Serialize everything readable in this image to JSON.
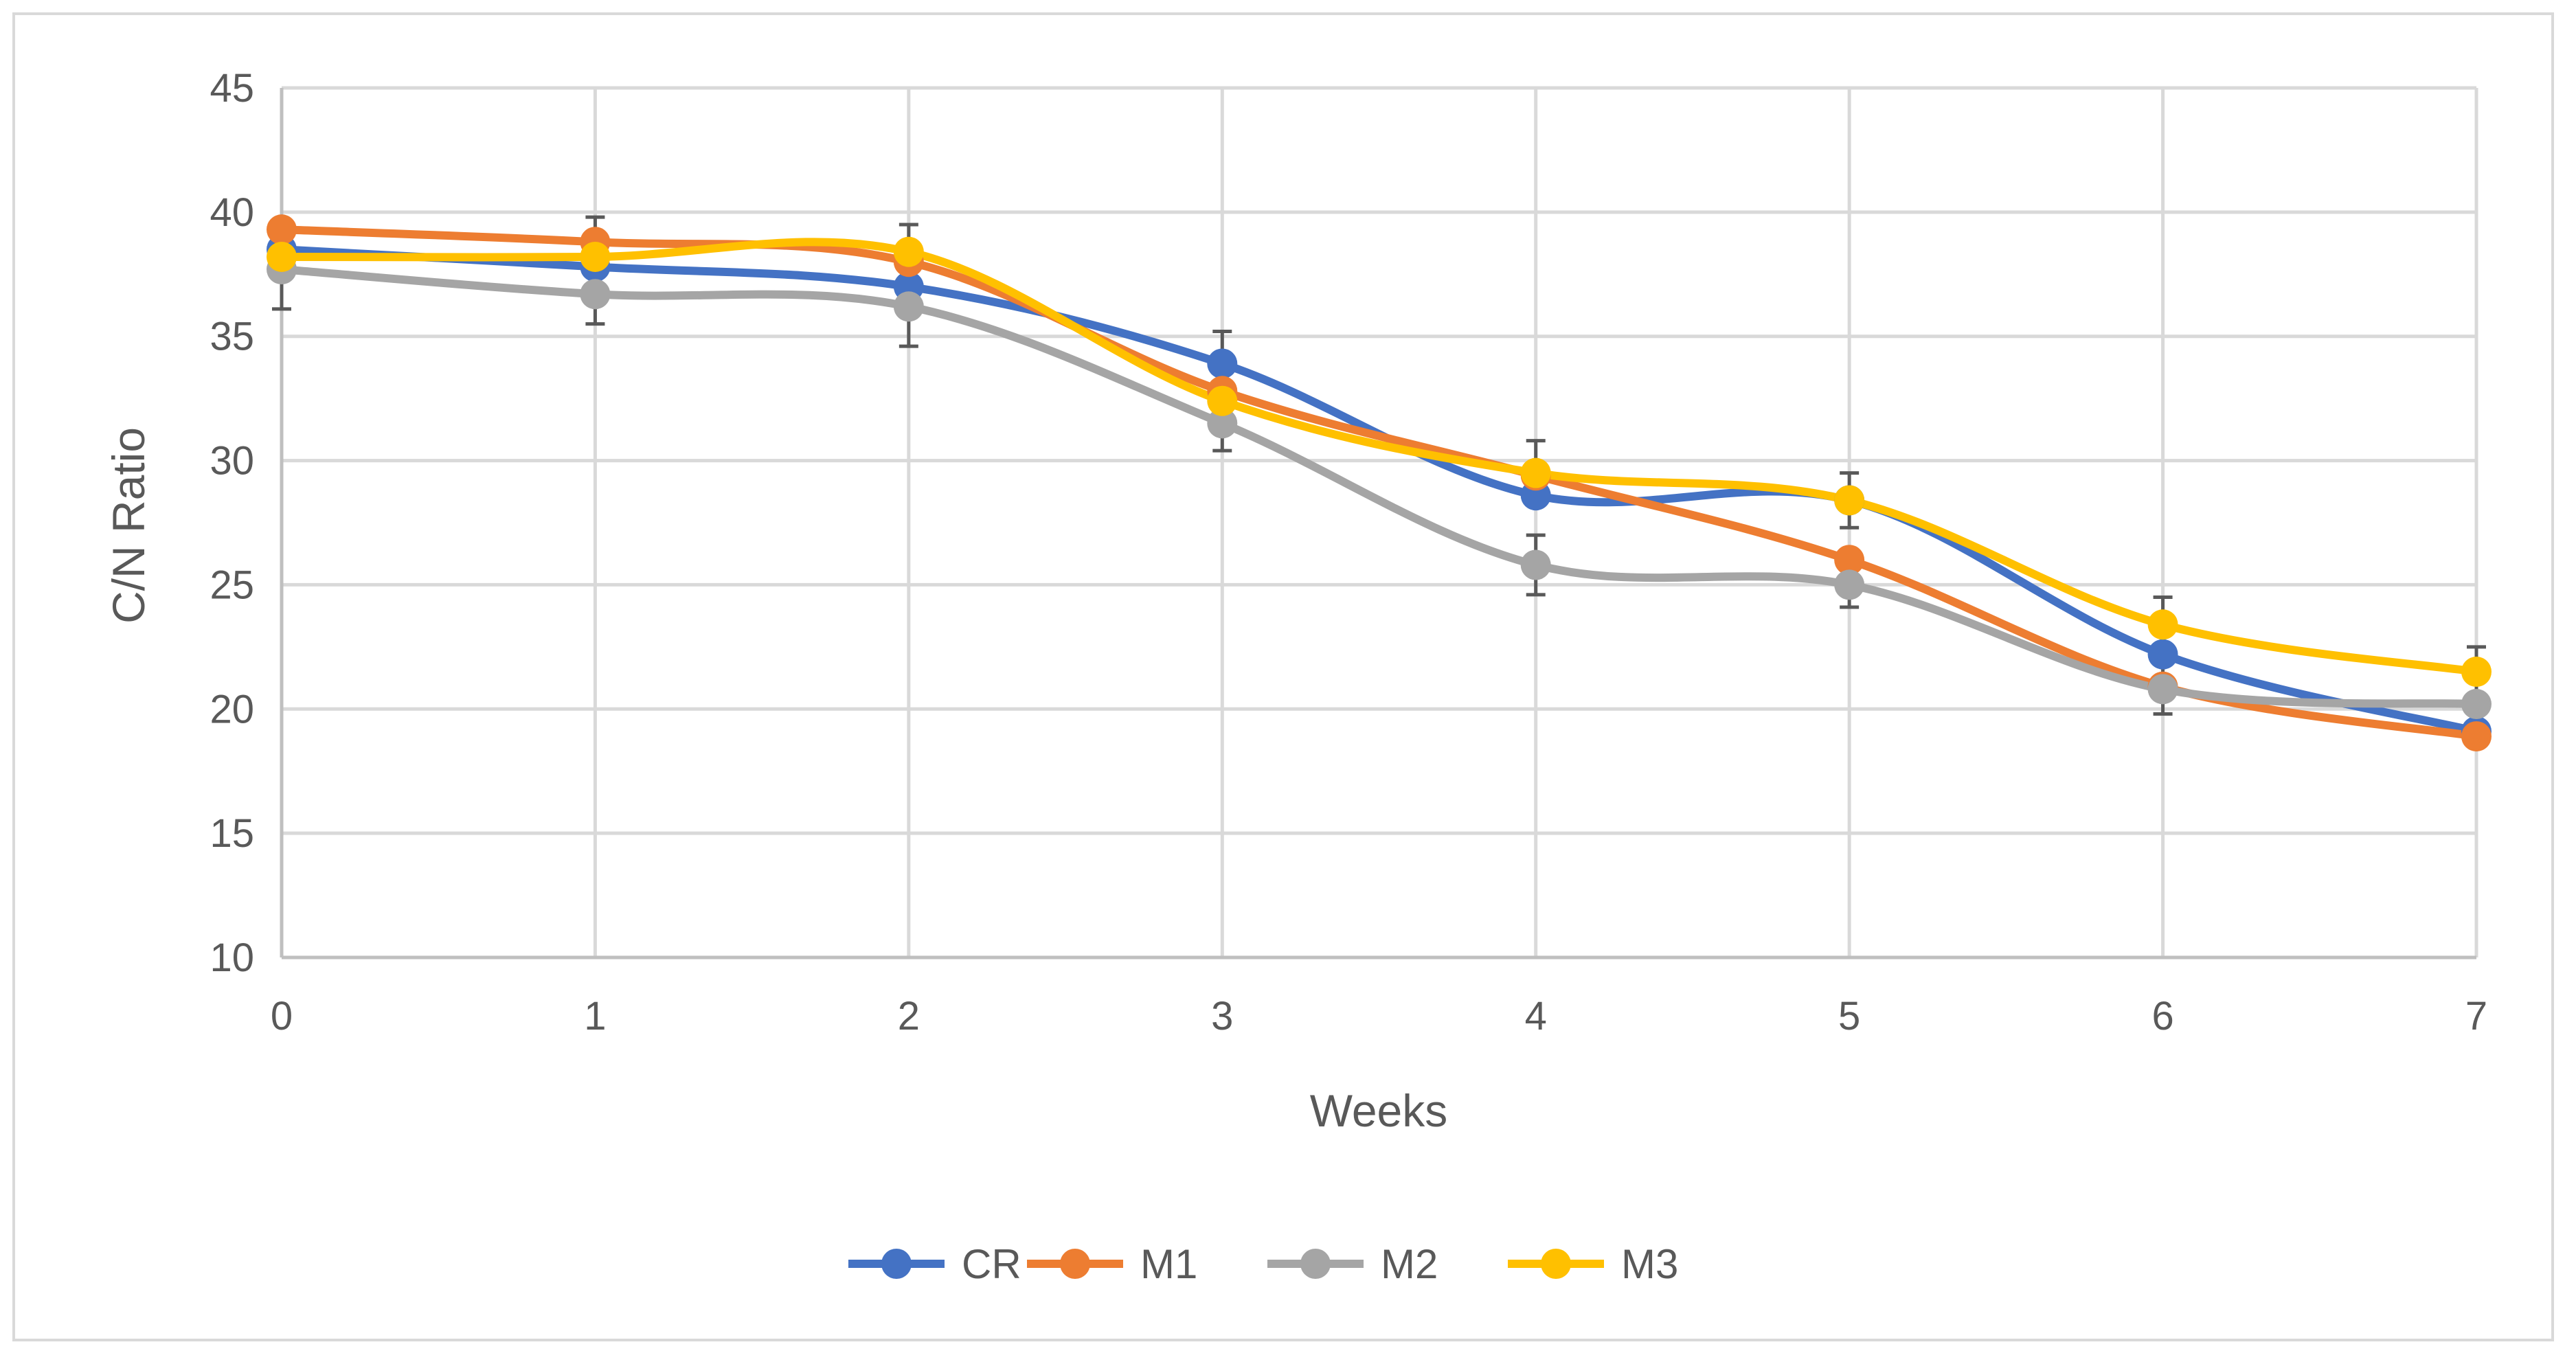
{
  "chart_data": {
    "type": "line",
    "title": "",
    "xlabel": "Weeks",
    "ylabel": "C/N Ratio",
    "x": [
      0,
      1,
      2,
      3,
      4,
      5,
      6,
      7
    ],
    "x_tick_labels": [
      "0",
      "1",
      "2",
      "3",
      "4",
      "5",
      "6",
      "7"
    ],
    "y_tick_labels": [
      "10",
      "15",
      "20",
      "25",
      "30",
      "35",
      "40",
      "45"
    ],
    "ylim": [
      10,
      45
    ],
    "xlim": [
      0,
      7
    ],
    "grid": true,
    "legend_position": "bottom",
    "smooth": true,
    "series": [
      {
        "name": "CR",
        "color": "#4472c4",
        "values": [
          38.5,
          37.8,
          37.0,
          33.9,
          28.6,
          28.4,
          22.2,
          19.1
        ],
        "errors": [
          0,
          0,
          0,
          1.3,
          0,
          0,
          0,
          0
        ]
      },
      {
        "name": "M1",
        "color": "#ed7d31",
        "values": [
          39.3,
          38.8,
          38.0,
          32.8,
          29.4,
          26.0,
          20.9,
          18.9
        ],
        "errors": [
          0,
          1.0,
          0,
          0,
          0,
          0,
          0,
          0
        ]
      },
      {
        "name": "M2",
        "color": "#a5a5a5",
        "values": [
          37.7,
          36.7,
          36.2,
          31.5,
          25.8,
          25.0,
          20.8,
          20.2
        ],
        "errors": [
          1.6,
          1.2,
          1.6,
          1.1,
          1.2,
          0.9,
          1.0,
          0
        ]
      },
      {
        "name": "M3",
        "color": "#ffc000",
        "values": [
          38.2,
          38.2,
          38.4,
          32.4,
          29.5,
          28.4,
          23.4,
          21.5
        ],
        "errors": [
          0,
          0,
          1.1,
          0,
          1.3,
          1.1,
          1.1,
          1.0
        ]
      }
    ]
  }
}
